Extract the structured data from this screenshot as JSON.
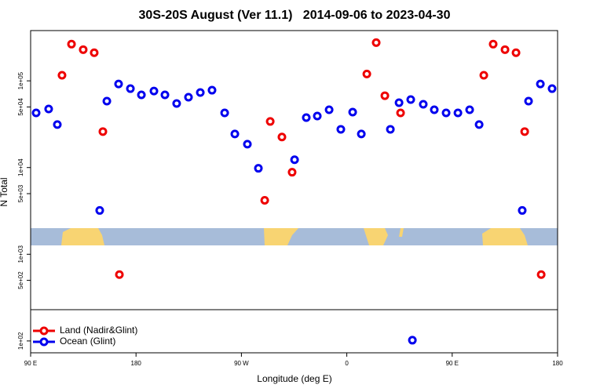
{
  "chart_data": {
    "type": "scatter",
    "title": "30S-20S August (Ver 11.1)   2014-09-06 to 2023-04-30",
    "x_label": "Longitude (deg E)",
    "y_label": "N Total",
    "log_y": true,
    "legend": "bottom-left",
    "xlim": [
      90,
      540
    ],
    "ylim": [
      73,
      380000
    ],
    "xticks": [
      {
        "value": 90,
        "label": "90 E"
      },
      {
        "value": 180,
        "label": "180"
      },
      {
        "value": 270,
        "label": "90 W"
      },
      {
        "value": 360,
        "label": "0"
      },
      {
        "value": 450,
        "label": "90 E"
      },
      {
        "value": 540,
        "label": "180"
      }
    ],
    "yticks": [
      {
        "value": 100,
        "label": "1e+02"
      },
      {
        "value": 500,
        "label": "5e+02"
      },
      {
        "value": 1000,
        "label": "1e+03"
      },
      {
        "value": 5000,
        "label": "5e+03"
      },
      {
        "value": 10000,
        "label": "1e+04"
      },
      {
        "value": 50000,
        "label": "5e+04"
      },
      {
        "value": 100000,
        "label": "1e+05"
      }
    ],
    "series": [
      {
        "name": "Land (Nadir&Glint)",
        "color": "#ee0000",
        "x": [
          116.8,
          124.9,
          134.9,
          144.3,
          151.7,
          165.8,
          289.9,
          294.6,
          304.6,
          313.3,
          377.1,
          385.1,
          392.5,
          405.9,
          477,
          485,
          495.1,
          504.5,
          511.9,
          526
        ],
        "values": [
          116000,
          265000,
          229000,
          211000,
          26000,
          583,
          4190,
          34000,
          22500,
          8830,
          120000,
          276000,
          67400,
          42700,
          116000,
          265000,
          229000,
          211000,
          26000,
          583
        ]
      },
      {
        "name": "Ocean (Glint)",
        "color": "#0000ee",
        "x": [
          94.7,
          105.4,
          112.8,
          149,
          155.1,
          165.1,
          175.2,
          184.6,
          195.3,
          204.7,
          214.7,
          224.8,
          234.9,
          244.9,
          255.7,
          264.4,
          275.1,
          284.5,
          315.4,
          325.4,
          334.8,
          344.9,
          354.9,
          365,
          372.4,
          397.2,
          404.6,
          414.6,
          425.3,
          434.7,
          444.8,
          454.9,
          464.9,
          473,
          509.8,
          515.2,
          525.3,
          535.3,
          416
        ],
        "values": [
          42700,
          47400,
          31300,
          3200,
          58300,
          92000,
          81300,
          68900,
          76300,
          68900,
          54800,
          64700,
          73300,
          78000,
          42700,
          24400,
          18600,
          9800,
          12300,
          37700,
          39300,
          46400,
          27600,
          43600,
          24400,
          27600,
          56000,
          60800,
          53700,
          46400,
          42700,
          42700,
          46400,
          31300,
          3200,
          58300,
          92000,
          81300,
          102
        ]
      }
    ]
  }
}
